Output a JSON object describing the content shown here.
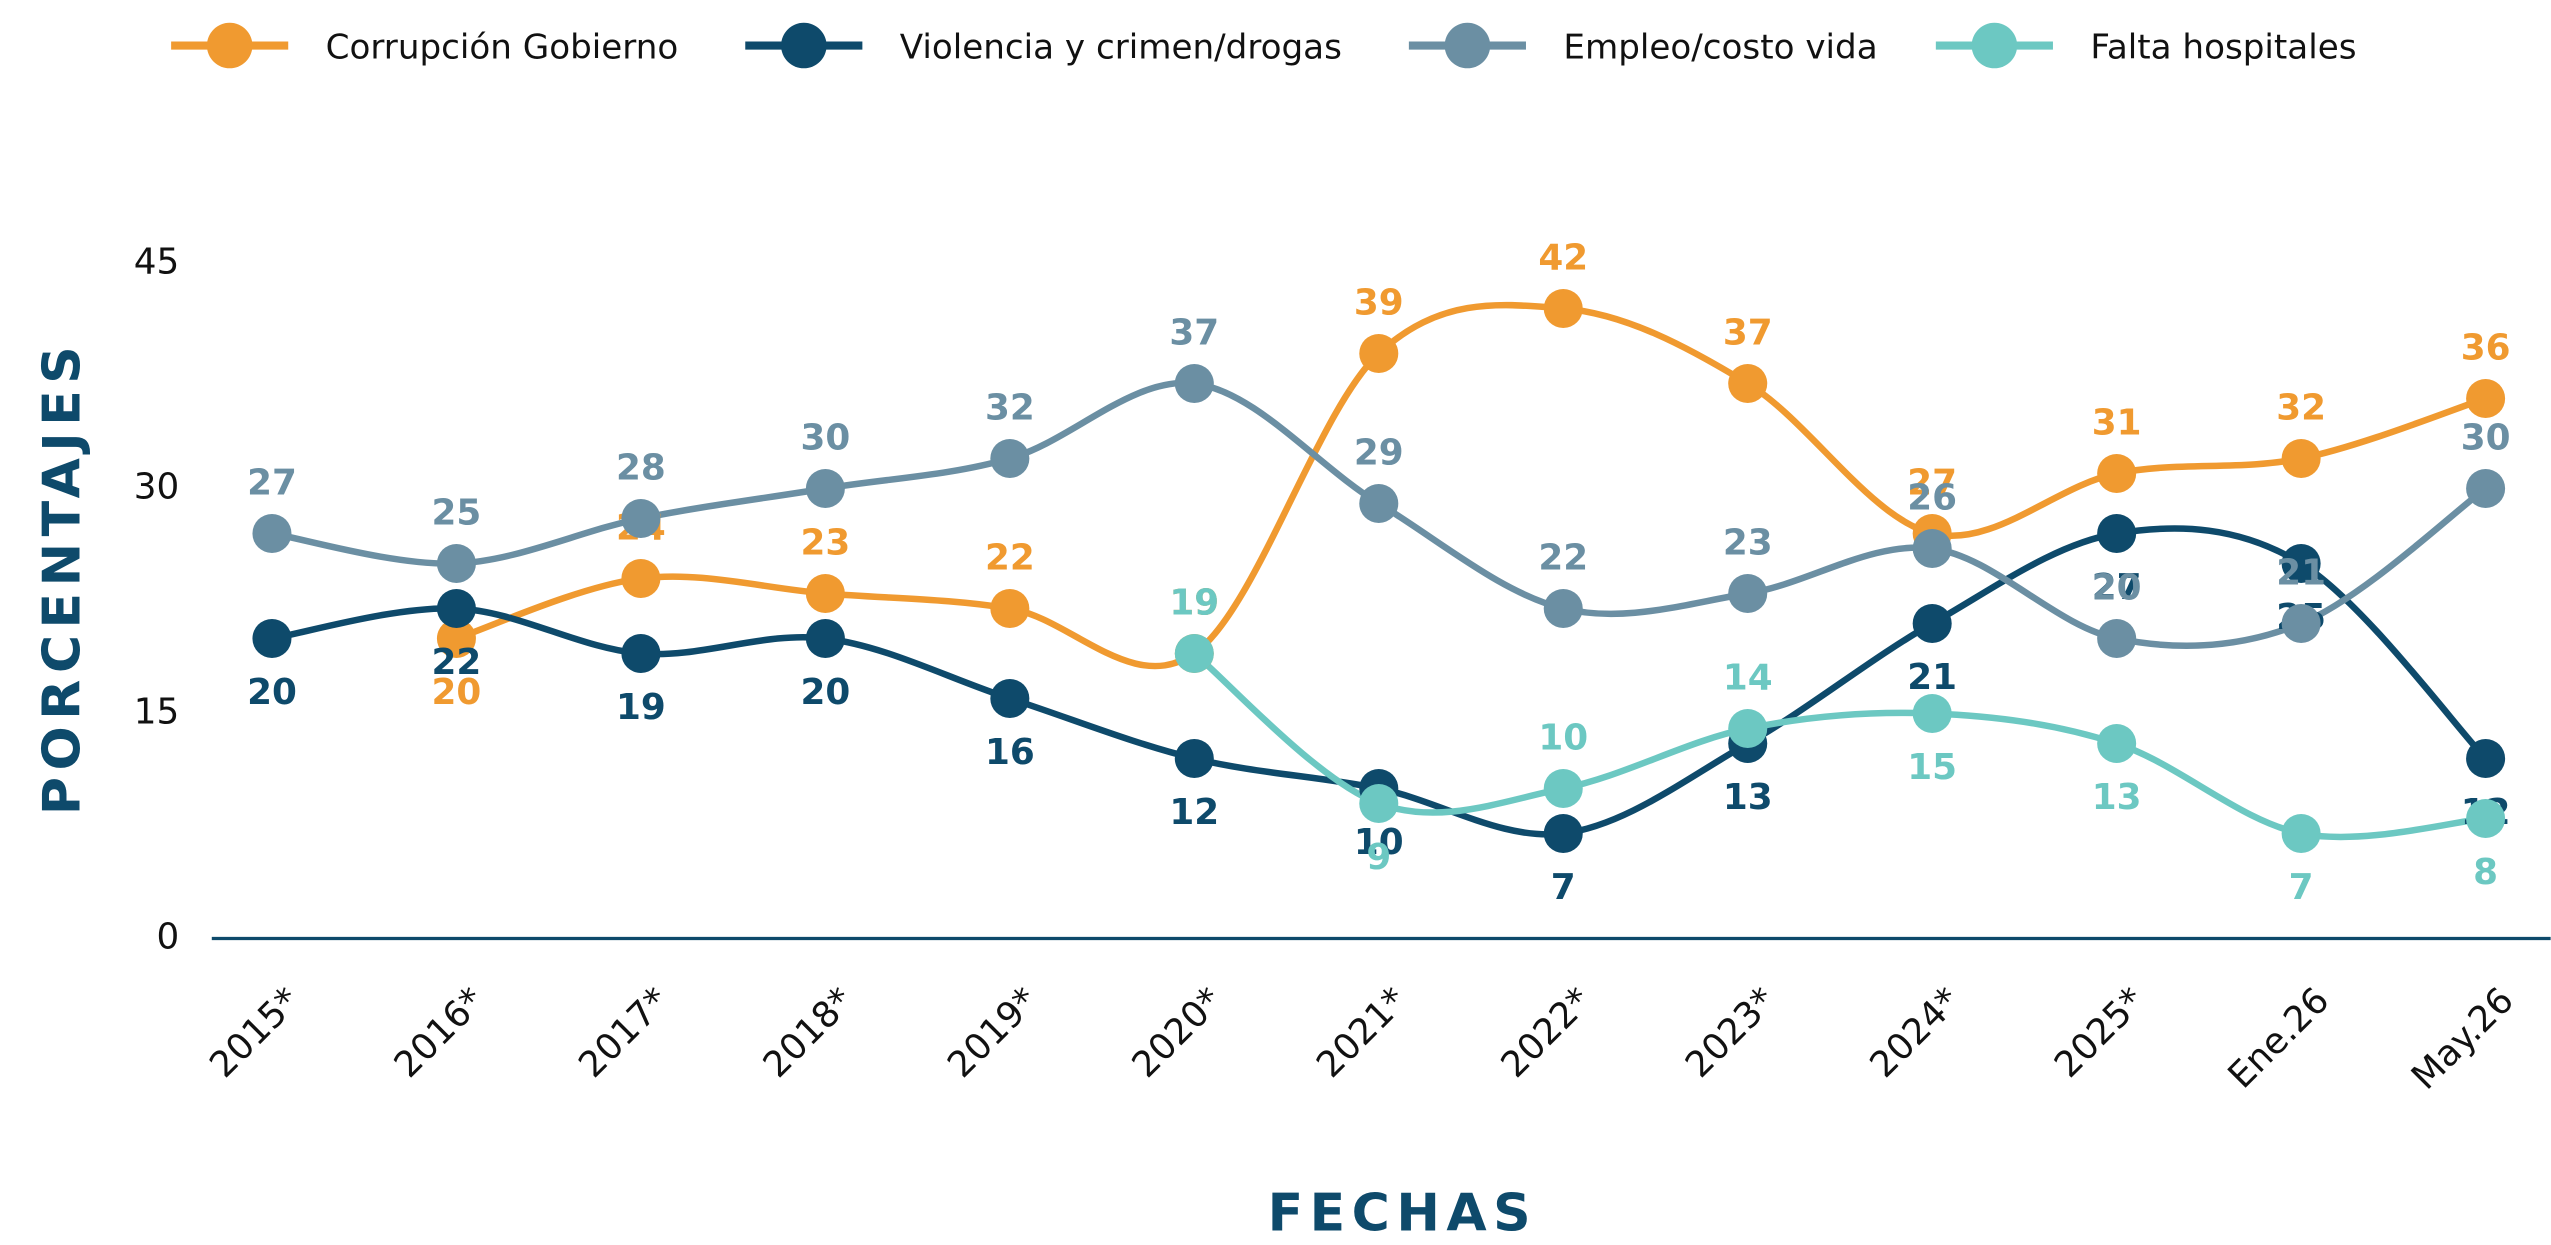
{
  "chart_data": {
    "type": "line",
    "x_label": "FECHAS",
    "y_label": "PORCENTAJES",
    "categories": [
      "2015*",
      "2016*",
      "2017*",
      "2018*",
      "2019*",
      "2020*",
      "2021*",
      "2022*",
      "2023*",
      "2024*",
      "2025*",
      "Ene.26",
      "May.26"
    ],
    "series": [
      {
        "name": "Corrupción Gobierno",
        "color": "#f09a30",
        "values": [
          null,
          20,
          24,
          23,
          22,
          19,
          39,
          42,
          37,
          27,
          31,
          32,
          36
        ]
      },
      {
        "name": "Violencia y crimen/drogas",
        "color": "#0e4a6b",
        "values": [
          20,
          22,
          19,
          20,
          16,
          12,
          10,
          7,
          13,
          21,
          27,
          25,
          12
        ]
      },
      {
        "name": "Empleo/costo vida",
        "color": "#6b8fa3",
        "values": [
          27,
          25,
          28,
          30,
          32,
          37,
          29,
          22,
          23,
          26,
          20,
          21,
          30
        ]
      },
      {
        "name": "Falta hospitales",
        "color": "#6cc8c2",
        "values": [
          null,
          null,
          null,
          null,
          null,
          19,
          9,
          10,
          14,
          15,
          13,
          7,
          8
        ]
      }
    ],
    "ylim": [
      0,
      45
    ],
    "yticks": [
      0,
      15,
      30,
      45
    ],
    "legend": "top"
  }
}
